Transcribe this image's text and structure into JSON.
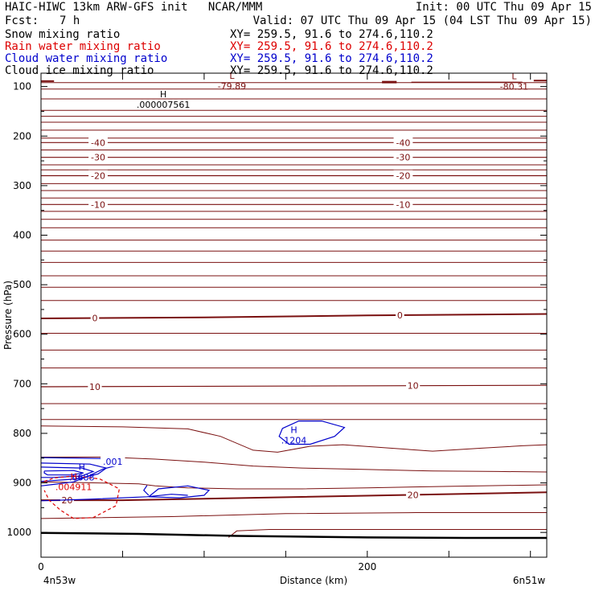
{
  "header": {
    "title": "HAIC-HIWC 13km ARW-GFS init   NCAR/MMM",
    "init": "Init: 00 UTC Thu 09 Apr 15",
    "fcst_label": "Fcst:",
    "fcst_value": "7 h",
    "valid": "Valid: 07 UTC Thu 09 Apr 15 (04 LST Thu 09 Apr 15)",
    "fields": [
      {
        "name": "Snow mixing ratio",
        "xy": "XY= 259.5, 91.6 to 274.6,110.2",
        "color": "#000000"
      },
      {
        "name": "Rain water mixing ratio",
        "xy": "XY= 259.5, 91.6 to 274.6,110.2",
        "color": "#dd0000"
      },
      {
        "name": "Cloud water mixing ratio",
        "xy": "XY= 259.5, 91.6 to 274.6,110.2",
        "color": "#0000cc"
      },
      {
        "name": "Cloud ice mixing ratio",
        "xy": "XY= 259.5, 91.6 to 274.6,110.2",
        "color": "#000000"
      }
    ]
  },
  "colors": {
    "temperature": "#7a1010",
    "cloud_water": "#0000cc",
    "rain_water": "#dd0000",
    "ground": "#000000"
  },
  "chart_data": {
    "type": "line",
    "ylabel": "Pressure (hPa)",
    "xlabel": "Distance (km)",
    "x_range_km": [
      0,
      310
    ],
    "y_range_hpa": [
      1050,
      73
    ],
    "yticks": [
      100,
      200,
      300,
      400,
      500,
      600,
      700,
      800,
      900,
      1000
    ],
    "ytick_labels": [
      "100",
      "200",
      "300",
      "400",
      "500",
      "600",
      "700",
      "800",
      "900",
      "1000"
    ],
    "xticks": [
      0,
      200
    ],
    "xtick_labels": [
      "0",
      "200"
    ],
    "x_endpoint_labels": {
      "left": "4n53w",
      "right": "6n51w"
    },
    "temperature_contours_c": [
      {
        "level": -40,
        "label": "-40",
        "points": [
          [
            0,
            213
          ],
          [
            310,
            213
          ]
        ],
        "labels_at_km": [
          35,
          222
        ]
      },
      {
        "level": -30,
        "label": "-30",
        "points": [
          [
            0,
            243
          ],
          [
            310,
            243
          ]
        ],
        "labels_at_km": [
          35,
          222
        ]
      },
      {
        "level": -20,
        "label": "-20",
        "points": [
          [
            0,
            280
          ],
          [
            310,
            280
          ]
        ],
        "labels_at_km": [
          35,
          222
        ]
      },
      {
        "level": -10,
        "label": "-10",
        "points": [
          [
            0,
            338
          ],
          [
            310,
            338
          ]
        ],
        "labels_at_km": [
          35,
          222
        ]
      },
      {
        "level": 0,
        "label": "0",
        "points": [
          [
            0,
            568
          ],
          [
            100,
            566
          ],
          [
            200,
            562
          ],
          [
            310,
            559
          ]
        ],
        "labels_at_km": [
          33,
          220
        ]
      },
      {
        "level": 10,
        "label": "10",
        "points": [
          [
            0,
            706
          ],
          [
            310,
            703
          ]
        ],
        "labels_at_km": [
          33,
          228
        ]
      },
      {
        "level": 20,
        "label": "20",
        "points": [
          [
            0,
            935
          ],
          [
            50,
            935
          ],
          [
            150,
            929
          ],
          [
            310,
            919
          ]
        ],
        "labels_at_km": [
          16,
          228
        ]
      }
    ],
    "temperature_extrema": [
      {
        "kind": "L",
        "value": "-79.89",
        "x_km": 117,
        "p_hpa": 91
      },
      {
        "kind": "L",
        "value": "-80.31",
        "x_km": 290,
        "p_hpa": 92
      }
    ],
    "cloud_water_extrema": [
      {
        "kind": "H",
        "value": ".6688",
        "x_km": 25,
        "p_hpa": 880
      },
      {
        "kind": "H",
        "value": ".1204",
        "x_km": 155,
        "p_hpa": 806
      }
    ],
    "cloud_water_label": ".001",
    "rain_water_extrema": [
      {
        "kind": "H",
        "value": ".004911",
        "x_km": 20,
        "p_hpa": 900
      }
    ],
    "snow_extrema": [
      {
        "kind": "H",
        "value": ".000007561",
        "x_km": 75,
        "p_hpa": 128
      }
    ]
  }
}
